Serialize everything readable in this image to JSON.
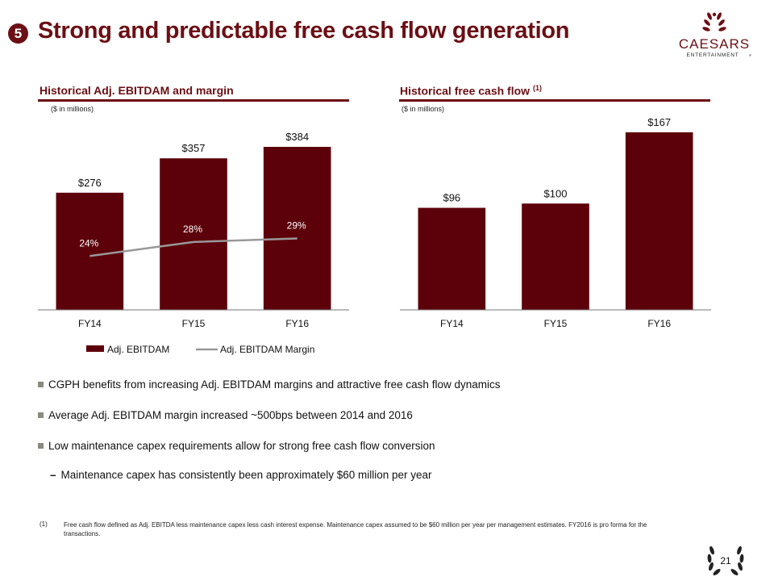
{
  "header": {
    "section_number": "5",
    "title": "Strong and predictable free cash flow generation",
    "logo_primary": "CAESARS",
    "logo_secondary": "ENTERTAINMENT",
    "logo_mark": "®"
  },
  "left_panel": {
    "title": "Historical Adj. EBITDAM and margin",
    "units": "($ in millions)"
  },
  "right_panel": {
    "title": "Historical free cash flow",
    "title_sup": "(1)",
    "units": "($ in millions)"
  },
  "chart_data": [
    {
      "type": "bar",
      "title": "Historical Adj. EBITDAM and margin",
      "categories": [
        "FY14",
        "FY15",
        "FY16"
      ],
      "series": [
        {
          "name": "Adj. EBITDAM",
          "values": [
            276,
            357,
            384
          ],
          "labels": [
            "$276",
            "$357",
            "$384"
          ],
          "color": "#5c0009"
        },
        {
          "name": "Adj. EBITDAM Margin",
          "type": "line",
          "values": [
            24,
            28,
            29
          ],
          "labels": [
            "24%",
            "28%",
            "29%"
          ],
          "color": "#999999"
        }
      ],
      "ylim": [
        0,
        384
      ],
      "margin_ylim": [
        0,
        50
      ],
      "legend": "bottom",
      "grid": false
    },
    {
      "type": "bar",
      "title": "Historical free cash flow",
      "categories": [
        "FY14",
        "FY15",
        "FY16"
      ],
      "series": [
        {
          "name": "Free cash flow",
          "values": [
            96,
            100,
            167
          ],
          "labels": [
            "$96",
            "$100",
            "$167"
          ],
          "color": "#5c0009"
        }
      ],
      "ylim": [
        0,
        167
      ],
      "legend": "none",
      "grid": false
    }
  ],
  "bullets": [
    "CGPH benefits from increasing Adj. EBITDAM margins and attractive free cash flow dynamics",
    "Average Adj. EBITDAM margin increased ~500bps between 2014 and 2016",
    "Low maintenance capex requirements allow for strong free cash flow conversion"
  ],
  "sub_bullet": "Maintenance capex has consistently been approximately $60 million per year",
  "sub_bullet_dash": "–",
  "footnote": {
    "number": "(1)",
    "text": "Free cash flow defined as Adj. EBITDA less maintenance capex less cash interest expense. Maintenance capex assumed to be $60 million per year per management estimates. FY2016 is pro forma for the transactions."
  },
  "page_number": "21",
  "colors": {
    "brand": "#6b0f14",
    "bar": "#5c0009",
    "line": "#999999",
    "bullet": "#8a8a80"
  }
}
